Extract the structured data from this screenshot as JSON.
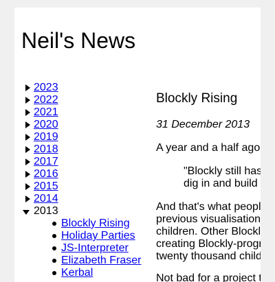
{
  "site": {
    "title": "Neil's News"
  },
  "archive": {
    "collapsed_years": [
      "2023",
      "2022",
      "2021",
      "2020",
      "2019",
      "2018",
      "2017",
      "2016",
      "2015",
      "2014"
    ],
    "open_year": "2013",
    "posts": [
      "Blockly Rising",
      "Holiday Parties",
      "JS-Interpreter",
      "Elizabeth Fraser",
      "Kerbal"
    ]
  },
  "article": {
    "title": "Blockly Rising",
    "date": "31 December 2013",
    "para1": "A year and a half ago I re",
    "quote_lines": [
      "\"Blockly still has a",
      "dig in and build so"
    ],
    "para2_lines": [
      "And that's what people d",
      "previous visualisation (w",
      "children. Other Blockly-c",
      "creating Blockly-program",
      "twenty thousand children"
    ],
    "para3": "Not bad for a project tha"
  }
}
